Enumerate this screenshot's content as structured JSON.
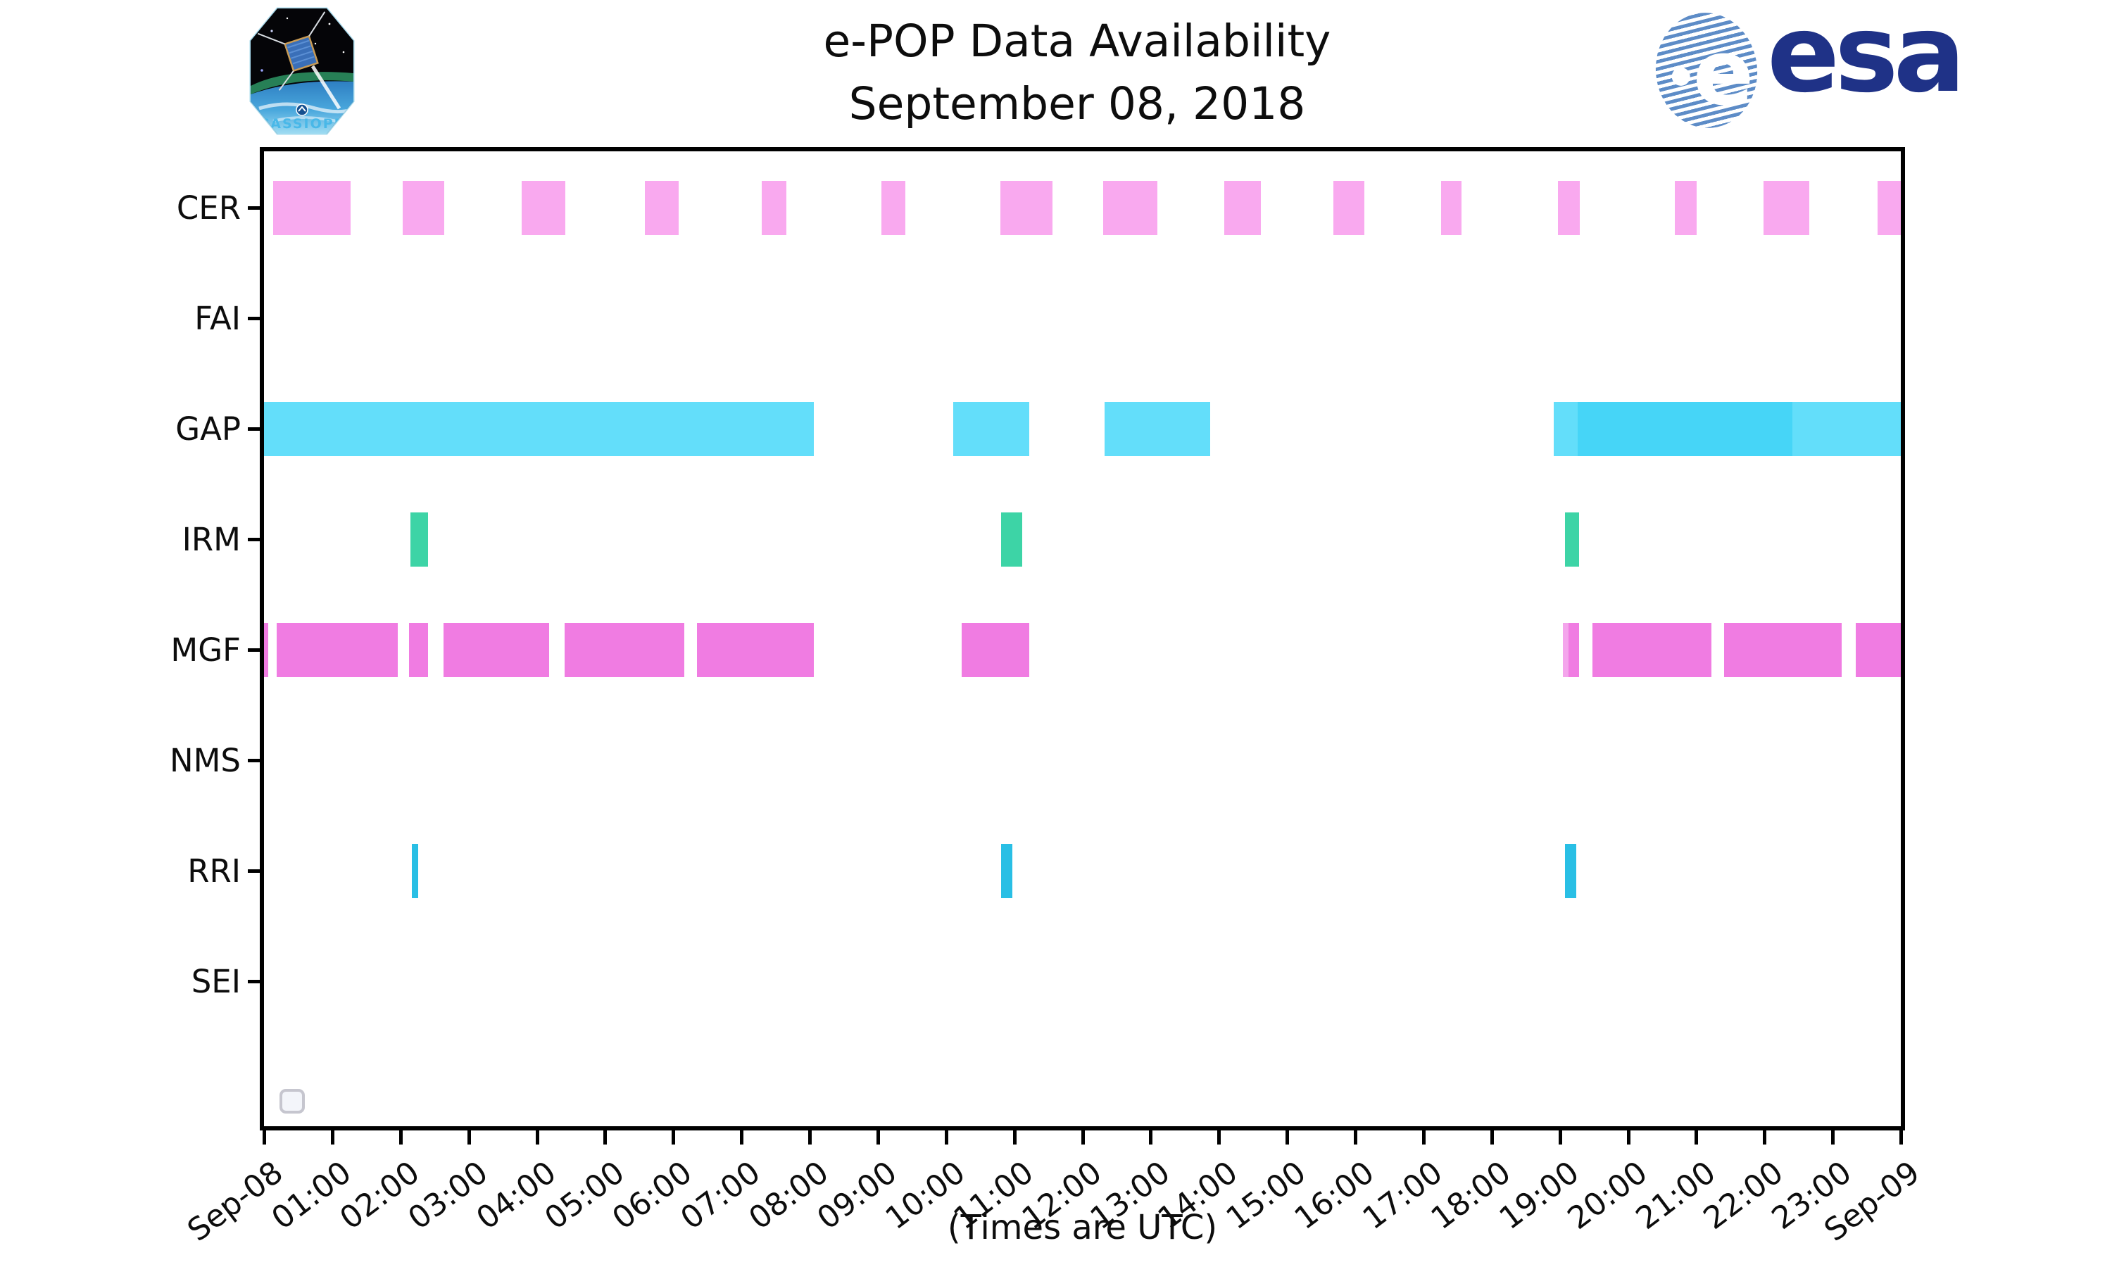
{
  "header": {
    "title_line1": "e-POP Data Availability",
    "title_line2": "September 08, 2018",
    "cassiope_patch_label": "CASSIOPE",
    "esa_wordmark": "esa",
    "esa_emblem_letter": "e"
  },
  "footer_note": "(Times are UTC)",
  "colors": {
    "cer_pink": "#F9A9EF",
    "gap_light": "#63DEFA",
    "gap_dark": "#46D5F7",
    "irm_teal": "#3DD4A6",
    "mgf_magenta": "#F07CE2",
    "mgf_light": "#F4A5EC",
    "rri_cyan": "#29BFE5",
    "axis_black": "#000000",
    "esa_navy": "#1F3287",
    "esa_stripe_blue": "#5D8CC7"
  },
  "chart_data": {
    "type": "timeline",
    "title": "e-POP Data Availability",
    "subtitle": "September 08, 2018",
    "xlabel": "(Times are UTC)",
    "x_axis": {
      "units": "hours UTC on 2018-09-08",
      "range_hours": [
        0,
        24
      ],
      "tick_labels": [
        "Sep-08",
        "01:00",
        "02:00",
        "03:00",
        "04:00",
        "05:00",
        "06:00",
        "07:00",
        "08:00",
        "09:00",
        "10:00",
        "11:00",
        "12:00",
        "13:00",
        "14:00",
        "15:00",
        "16:00",
        "17:00",
        "18:00",
        "19:00",
        "20:00",
        "21:00",
        "22:00",
        "23:00",
        "Sep-09"
      ]
    },
    "rows": [
      {
        "label": "CER",
        "color_key": "cer_pink",
        "segments": [
          [
            0.13,
            1.27
          ],
          [
            2.03,
            2.64
          ],
          [
            3.78,
            4.42
          ],
          [
            5.58,
            6.08
          ],
          [
            7.3,
            7.66
          ],
          [
            9.05,
            9.4
          ],
          [
            10.8,
            11.56
          ],
          [
            12.3,
            13.1
          ],
          [
            14.08,
            14.62
          ],
          [
            15.68,
            16.13
          ],
          [
            17.26,
            17.56
          ],
          [
            18.97,
            19.29
          ],
          [
            20.69,
            21.01
          ],
          [
            21.99,
            22.66
          ],
          [
            23.66,
            24.0
          ]
        ]
      },
      {
        "label": "FAI",
        "color_key": "cer_pink",
        "segments": []
      },
      {
        "label": "GAP",
        "color_key": "gap_light",
        "segments": [
          [
            0.0,
            8.06
          ],
          [
            10.11,
            11.22
          ],
          [
            12.33,
            13.87
          ],
          [
            18.91,
            19.26
          ],
          [
            19.26,
            22.41,
            "gap_dark"
          ],
          [
            22.41,
            24.0
          ]
        ]
      },
      {
        "label": "IRM",
        "color_key": "irm_teal",
        "segments": [
          [
            2.15,
            2.41
          ],
          [
            10.81,
            11.12
          ],
          [
            19.08,
            19.28
          ]
        ]
      },
      {
        "label": "MGF",
        "color_key": "mgf_magenta",
        "segments": [
          [
            0.0,
            0.06
          ],
          [
            0.19,
            1.96
          ],
          [
            2.13,
            2.41
          ],
          [
            2.63,
            4.18
          ],
          [
            4.41,
            6.16
          ],
          [
            6.35,
            8.06
          ],
          [
            10.23,
            11.22
          ],
          [
            19.05,
            19.13,
            "mgf_light"
          ],
          [
            19.13,
            19.28
          ],
          [
            19.48,
            21.22
          ],
          [
            21.41,
            23.13
          ],
          [
            23.34,
            24.0
          ]
        ]
      },
      {
        "label": "NMS",
        "color_key": "cer_pink",
        "segments": []
      },
      {
        "label": "RRI",
        "color_key": "rri_cyan",
        "segments": [
          [
            2.17,
            2.26
          ],
          [
            10.81,
            10.97
          ],
          [
            19.08,
            19.24
          ]
        ]
      },
      {
        "label": "SEI",
        "color_key": "cer_pink",
        "segments": []
      }
    ],
    "legend_position": "empty box, lower-left inside axes",
    "grid": false
  }
}
